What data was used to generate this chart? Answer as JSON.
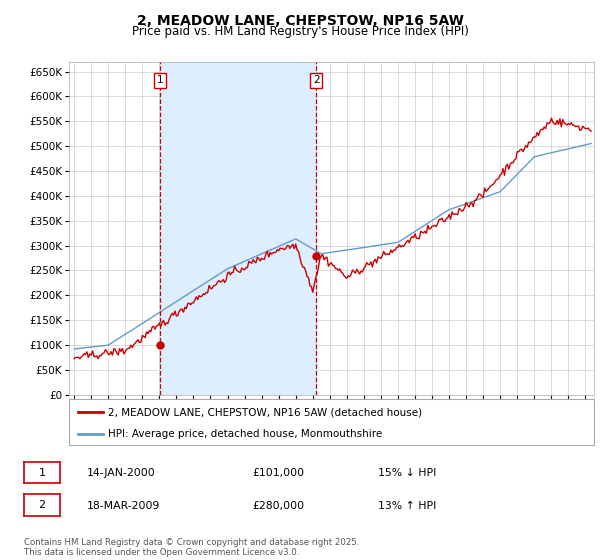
{
  "title": "2, MEADOW LANE, CHEPSTOW, NP16 5AW",
  "subtitle": "Price paid vs. HM Land Registry's House Price Index (HPI)",
  "ylim": [
    0,
    670000
  ],
  "yticks": [
    0,
    50000,
    100000,
    150000,
    200000,
    250000,
    300000,
    350000,
    400000,
    450000,
    500000,
    550000,
    600000,
    650000
  ],
  "ytick_labels": [
    "£0",
    "£50K",
    "£100K",
    "£150K",
    "£200K",
    "£250K",
    "£300K",
    "£350K",
    "£400K",
    "£450K",
    "£500K",
    "£550K",
    "£600K",
    "£650K"
  ],
  "xlim_start": 1994.7,
  "xlim_end": 2025.5,
  "line1_color": "#cc0000",
  "line2_color": "#6699cc",
  "shade_color": "#ddeeff",
  "grid_color": "#cccccc",
  "background_color": "#ffffff",
  "purchase1_x": 2000.04,
  "purchase1_y": 101000,
  "purchase2_x": 2009.21,
  "purchase2_y": 280000,
  "vline_color": "#cc0000",
  "legend_line1": "2, MEADOW LANE, CHEPSTOW, NP16 5AW (detached house)",
  "legend_line2": "HPI: Average price, detached house, Monmouthshire",
  "table_row1": [
    "1",
    "14-JAN-2000",
    "£101,000",
    "15% ↓ HPI"
  ],
  "table_row2": [
    "2",
    "18-MAR-2009",
    "£280,000",
    "13% ↑ HPI"
  ],
  "footer": "Contains HM Land Registry data © Crown copyright and database right 2025.\nThis data is licensed under the Open Government Licence v3.0.",
  "title_fontsize": 10,
  "subtitle_fontsize": 8.5,
  "tick_fontsize": 7.5
}
